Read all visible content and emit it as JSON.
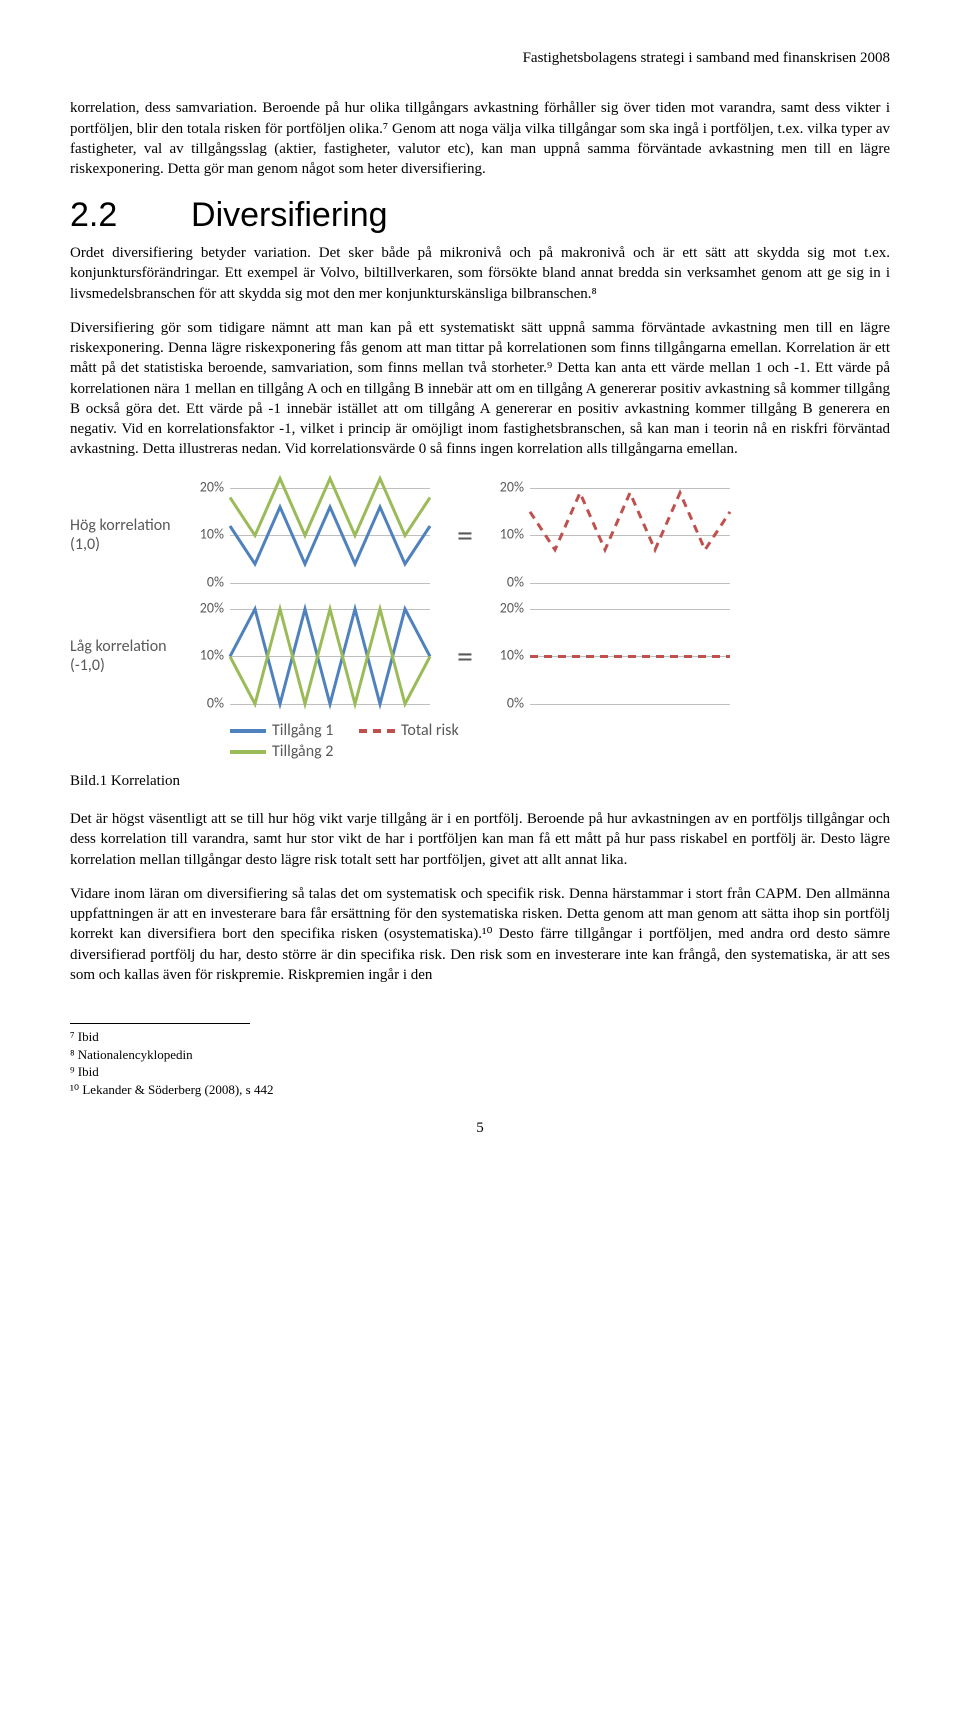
{
  "header": "Fastighetsbolagens strategi i samband med finanskrisen 2008",
  "para1": "korrelation, dess samvariation. Beroende på hur olika tillgångars avkastning förhåller sig över tiden mot varandra, samt dess vikter i portföljen, blir den totala risken för portföljen olika.⁷ Genom att noga välja vilka tillgångar som ska ingå i portföljen, t.ex. vilka typer av fastigheter, val av tillgångsslag (aktier, fastigheter, valutor etc), kan man uppnå samma förväntade avkastning men till en lägre riskexponering. Detta gör man genom något som heter diversifiering.",
  "section_num": "2.2",
  "section_title": "Diversifiering",
  "para2": "Ordet diversifiering betyder variation. Det sker både på mikronivå och på makronivå och är ett sätt att skydda sig mot t.ex. konjunktursförändringar. Ett exempel är Volvo, biltillverkaren, som försökte bland annat bredda sin verksamhet genom att ge sig in i livsmedelsbranschen för att skydda sig mot den mer konjunkturskänsliga bilbranschen.⁸",
  "para3": "Diversifiering gör som tidigare nämnt att man kan på ett systematiskt sätt uppnå samma förväntade avkastning men till en lägre riskexponering. Denna lägre riskexponering fås genom att man tittar på korrelationen som finns tillgångarna emellan. Korrelation är ett mått på det statistiska beroende, samvariation, som finns mellan två storheter.⁹ Detta kan anta ett värde mellan 1 och -1. Ett värde på korrelationen nära 1 mellan en tillgång A och en tillgång B innebär att om en tillgång A genererar positiv avkastning så kommer tillgång B också göra det. Ett värde på -1 innebär istället att om tillgång A genererar en positiv avkastning kommer tillgång B generera en negativ. Vid en korrelationsfaktor -1, vilket i princip är omöjligt inom fastighetsbranschen, så kan man i teorin nå en riskfri förväntad avkastning. Detta illustreras nedan. Vid korrelationsvärde 0 så finns ingen korrelation alls tillgångarna emellan.",
  "charts": {
    "ylabels": [
      "20%",
      "10%",
      "0%"
    ],
    "colors": {
      "asset1": "#4f81bd",
      "asset2": "#9bbb59",
      "total": "#c0504d",
      "grid": "#bfbfbf"
    },
    "line_width": 3,
    "row1": {
      "label": "Hög korrelation (1,0)",
      "left": {
        "asset1": [
          12,
          4,
          16,
          4,
          16,
          4,
          16,
          4,
          12
        ],
        "asset2": [
          18,
          10,
          22,
          10,
          22,
          10,
          22,
          10,
          18
        ]
      },
      "right": {
        "total": [
          15,
          7,
          19,
          7,
          19,
          7,
          19,
          7,
          15
        ]
      }
    },
    "row2": {
      "label": "Låg korrelation (-1,0)",
      "left": {
        "asset1": [
          10,
          20,
          0,
          20,
          0,
          20,
          0,
          20,
          10
        ],
        "asset2": [
          10,
          0,
          20,
          0,
          20,
          0,
          20,
          0,
          10
        ]
      },
      "right": {
        "total": [
          10,
          10,
          10,
          10,
          10,
          10,
          10,
          10,
          10
        ]
      }
    },
    "legend": {
      "asset1": "Tillgång 1",
      "total": "Total risk",
      "asset2": "Tillgång 2"
    }
  },
  "fig_caption": "Bild.1 Korrelation",
  "para4": "Det är högst väsentligt att se till hur hög vikt varje tillgång är i en portfölj. Beroende på hur avkastningen av en portföljs tillgångar och dess korrelation till varandra, samt hur stor vikt de har i portföljen kan man få ett mått på hur pass riskabel en portfölj är. Desto lägre korrelation mellan tillgångar desto lägre risk totalt sett har portföljen, givet att allt annat lika.",
  "para5": "Vidare inom läran om diversifiering så talas det om systematisk och specifik risk. Denna härstammar i stort från CAPM. Den allmänna uppfattningen är att en investerare bara får ersättning för den systematiska risken.  Detta genom att man genom att sätta ihop sin portfölj korrekt kan diversifiera bort den specifika risken (osystematiska).¹⁰ Desto färre tillgångar i portföljen, med andra ord desto sämre diversifierad portfölj du har, desto större är din specifika risk. Den risk som en investerare inte kan frångå, den systematiska, är att ses som och kallas även för riskpremie. Riskpremien ingår i den",
  "footnotes": [
    "⁷ Ibid",
    "⁸ Nationalencyklopedin",
    "⁹ Ibid",
    "¹⁰ Lekander & Söderberg (2008), s 442"
  ],
  "page_num": "5"
}
